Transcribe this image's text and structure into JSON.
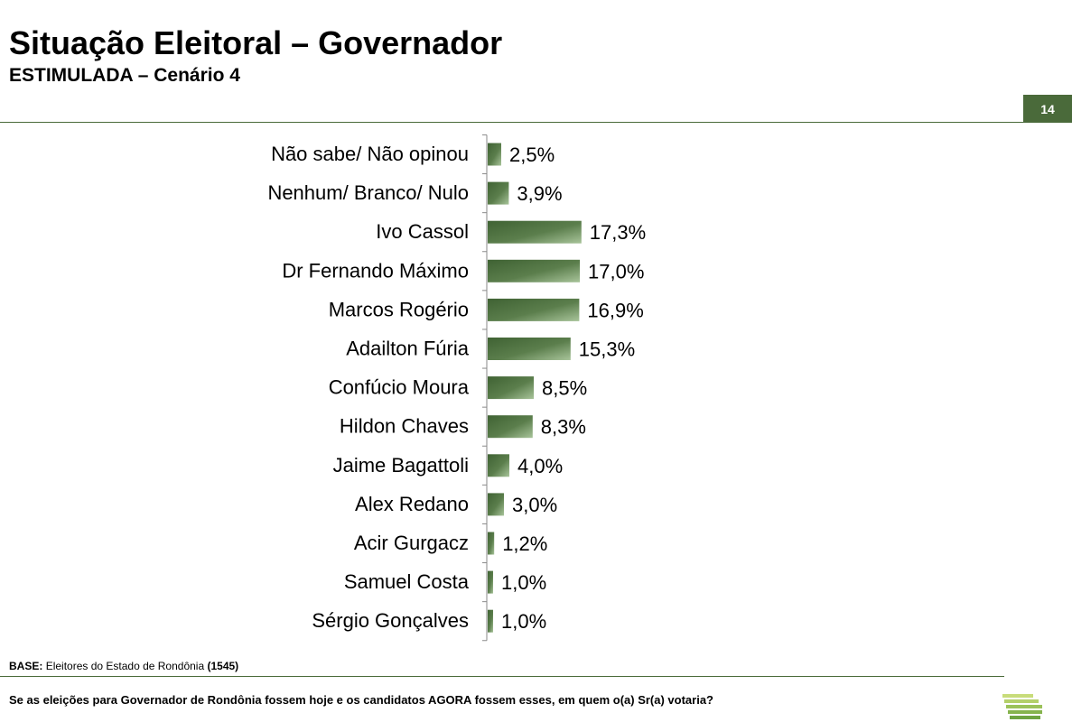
{
  "header": {
    "title": "Situação Eleitoral – Governador",
    "subtitle": "ESTIMULADA – Cenário 4",
    "page_number": "14"
  },
  "footer": {
    "base_label": "BASE:",
    "base_text": "Eleitores do Estado de Rondônia",
    "base_count": "(1545)",
    "question": "Se as eleições para Governador de Rondônia fossem hoje e os candidatos AGORA fossem esses, em quem o(a) Sr(a) votaria?"
  },
  "colors": {
    "accent": "#4a6a3a",
    "bar_dark": "#3f6233",
    "bar_light": "#a8c49a"
  },
  "logo": {
    "icon": "striped-bars-logo-icon"
  },
  "chart_data": {
    "type": "bar",
    "orientation": "horizontal",
    "categories": [
      "Não sabe/ Não opinou",
      "Nenhum/ Branco/ Nulo",
      "Ivo Cassol",
      "Dr Fernando Máximo",
      "Marcos Rogério",
      "Adailton Fúria",
      "Confúcio Moura",
      "Hildon Chaves",
      "Jaime Bagattoli",
      "Alex Redano",
      "Acir Gurgacz",
      "Samuel Costa",
      "Sérgio Gonçalves"
    ],
    "values": [
      2.5,
      3.9,
      17.3,
      17.0,
      16.9,
      15.3,
      8.5,
      8.3,
      4.0,
      3.0,
      1.2,
      1.0,
      1.0
    ],
    "labels": [
      "2,5%",
      "3,9%",
      "17,3%",
      "17,0%",
      "16,9%",
      "15,3%",
      "8,5%",
      "8,3%",
      "4,0%",
      "3,0%",
      "1,2%",
      "1,0%",
      "1,0%"
    ],
    "unit": "%",
    "xlim": [
      0,
      17.3
    ],
    "grid": false,
    "legend": "none"
  }
}
